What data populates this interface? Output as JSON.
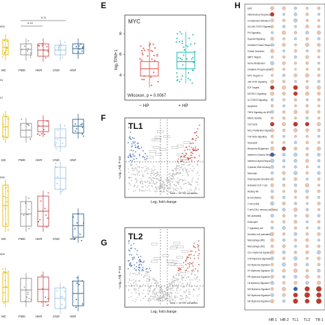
{
  "panel_labels": {
    "e": "E",
    "f": "F",
    "g": "G",
    "h": "H"
  },
  "colors": {
    "hp_minus": "#e0504a",
    "hp_plus": "#1fb8b0",
    "up": "#c0392b",
    "down": "#3a5fa8",
    "ns": "#b8b8b8",
    "pmmc": "#e6b800",
    "fmd": "#8c8c8c",
    "hkr": "#c8454a",
    "cnd": "#9fc0e0",
    "hnf": "#2a5f8a"
  },
  "left_panels": {
    "groups": [
      "MC",
      "FMD",
      "HKR",
      "CND",
      "HNF"
    ],
    "sig_top": [
      "0.19",
      "0.11"
    ],
    "sig_left": "005",
    "row_codes": [
      "01",
      "07",
      "006",
      "006"
    ]
  },
  "chart_data": [
    {
      "type": "box",
      "panel": "E",
      "title": "MYC",
      "ylabel": "log₂TPM+1",
      "categories": [
        "− HP",
        "+ HP"
      ],
      "ylim": [
        2.5,
        8.6
      ],
      "yticks": [
        4,
        6,
        8
      ],
      "stat_text": "Wilcoxon, p = 0.0067",
      "boxes": [
        {
          "name": "− HP",
          "q1": 3.9,
          "median": 4.6,
          "q3": 5.3,
          "whisker_low": 2.8,
          "whisker_high": 7.2
        },
        {
          "name": "+ HP",
          "q1": 4.6,
          "median": 5.3,
          "q3": 6.2,
          "whisker_low": 3.2,
          "whisker_high": 8.2
        }
      ]
    },
    {
      "type": "scatter",
      "panel": "F",
      "title": "TL1",
      "xlabel": "Log₂ fold change",
      "ylabel": "−Log₁₀ Adj. P-val",
      "total_text": "Total = 14799 variables"
    },
    {
      "type": "scatter",
      "panel": "G",
      "title": "TL2",
      "xlabel": "Log₂ fold change",
      "ylabel": "−Log₁₀ Adj. P-val",
      "total_text": "Total = 14799 variables"
    },
    {
      "type": "heatmap",
      "panel": "H",
      "columns": [
        "HB 1",
        "HB 2",
        "TL1",
        "TL2",
        "TB 1"
      ],
      "rows": [
        "EMT",
        "Inflammatory Response",
        "Complement Activation",
        "IL6-JAK-STAT3 Signaling",
        "PI3 Signaling",
        "Hypoxia Signaling",
        "Unfolded Protein Response",
        "Protein Secretion",
        "SBP1 Targets",
        "Heme Metabolism",
        "Oxidative Phosphorylation",
        "MYC Targets v2",
        "JAK STAT Signaling",
        "E2F Targets",
        "MTORC1 Signaling",
        "IL2 STAT5 Signaling",
        "Apoptosis",
        "TNFA Signaling via NFKB",
        "Mitotic Spindle",
        "Cell Cycle",
        "MCL Proliferation Signature",
        "TGF Beta Signaling",
        "Glycolysis",
        "Ribosome Biogenesis",
        "Interferon Gamma Response",
        "Interferon Alpha Response",
        "Cytosolic DNA Sensing",
        "Monocyte",
        "Plasmacytoid Dendritic cell",
        "Activated CD4 T cell",
        "Resting NK",
        "B-Cell (Naive)",
        "T-cell (CD8)",
        "T-cell (CD4, memory activated)",
        "NK (activated)",
        "Eosinophil",
        "T regulatory cell",
        "Dendritic cell (activated)",
        "Macrophage (M0)",
        "Macrophage (M2)",
        "CD-1 Myeloma Signature",
        "CTA Myeloma Signature",
        "CD Myeloma Signature",
        "HY Myeloma Signature",
        "PR Myeloma Signature",
        "LB Myeloma Signature",
        "MS Myeloma Signature",
        "MF Myeloma Signature",
        "MF Myeloma Signature"
      ],
      "values": [
        [
          0.5,
          0.4,
          -0.3,
          0.2,
          0.3
        ],
        [
          0.6,
          -0.2,
          -0.4,
          0.3,
          -0.2
        ],
        [
          0.4,
          0.3,
          -0.5,
          0.2,
          0.2
        ],
        [
          0.3,
          -0.3,
          -0.2,
          0.4,
          0.3
        ],
        [
          -0.2,
          0.5,
          0.3,
          -0.4,
          0.5
        ],
        [
          0.4,
          0.2,
          -0.2,
          0.3,
          -0.3
        ],
        [
          -0.3,
          0.4,
          0.2,
          0.5,
          0.4
        ],
        [
          0.5,
          -0.2,
          0.3,
          -0.2,
          0.3
        ],
        [
          0.2,
          0.3,
          -0.3,
          0.4,
          0.2
        ],
        [
          -0.5,
          0.4,
          0.2,
          0.3,
          -0.2
        ],
        [
          0.3,
          0.2,
          0.1,
          0.2,
          0.2
        ],
        [
          0.2,
          -0.3,
          0.4,
          0.5,
          0.3
        ],
        [
          0.4,
          0.3,
          -0.2,
          0.2,
          -0.3
        ],
        [
          0.6,
          0.5,
          0.7,
          0.4,
          0.5
        ],
        [
          0.5,
          0.4,
          0.6,
          0.5,
          0.4
        ],
        [
          -0.3,
          0.2,
          0.3,
          -0.2,
          0.3
        ],
        [
          0.3,
          -0.2,
          0.2,
          0.3,
          0.2
        ],
        [
          -0.4,
          0.3,
          0.5,
          0.4,
          0.3
        ],
        [
          0.2,
          0.3,
          0.2,
          -0.3,
          0.2
        ],
        [
          0.6,
          0.5,
          0.7,
          0.6,
          0.5
        ],
        [
          0.4,
          0.3,
          0.5,
          0.4,
          0.3
        ],
        [
          0.3,
          -0.2,
          0.2,
          0.2,
          -0.2
        ],
        [
          0.2,
          0.2,
          -0.3,
          0.3,
          0.2
        ],
        [
          0.5,
          0.6,
          0.4,
          0.3,
          0.5
        ],
        [
          -0.6,
          -0.4,
          -0.5,
          0.3,
          -0.4
        ],
        [
          -0.5,
          -0.3,
          -0.4,
          0.4,
          -0.3
        ],
        [
          -0.4,
          -0.2,
          -0.3,
          0.2,
          -0.2
        ],
        [
          -0.3,
          0.4,
          -0.5,
          0.3,
          -0.4
        ],
        [
          0.3,
          -0.3,
          0.4,
          -0.2,
          0.3
        ],
        [
          0.4,
          0.3,
          -0.3,
          0.5,
          0.2
        ],
        [
          -0.3,
          0.2,
          0.3,
          -0.4,
          0.3
        ],
        [
          0.4,
          -0.3,
          0.2,
          0.3,
          -0.2
        ],
        [
          -0.5,
          0.4,
          -0.3,
          0.2,
          0.4
        ],
        [
          0.3,
          -0.4,
          0.5,
          -0.3,
          0.2
        ],
        [
          -0.4,
          0.3,
          -0.2,
          0.4,
          -0.3
        ],
        [
          0.2,
          0.3,
          0.4,
          -0.2,
          0.3
        ],
        [
          -0.3,
          -0.4,
          0.3,
          0.2,
          -0.3
        ],
        [
          0.5,
          0.3,
          -0.4,
          0.3,
          0.4
        ],
        [
          0.4,
          -0.3,
          0.3,
          0.4,
          -0.2
        ],
        [
          0.3,
          0.4,
          -0.2,
          0.3,
          0.3
        ],
        [
          0.5,
          -0.4,
          0.3,
          0.4,
          -0.5
        ],
        [
          -0.4,
          0.3,
          -0.5,
          0.2,
          0.4
        ],
        [
          0.3,
          -0.5,
          0.4,
          -0.3,
          0.3
        ],
        [
          -0.3,
          0.4,
          0.5,
          0.3,
          -0.4
        ],
        [
          0.4,
          -0.3,
          -0.4,
          0.5,
          0.3
        ],
        [
          -0.5,
          0.3,
          0.4,
          -0.4,
          0.5
        ],
        [
          0.3,
          0.5,
          -0.6,
          0.8,
          0.9
        ],
        [
          -0.4,
          0.4,
          0.7,
          0.9,
          0.8
        ],
        [
          0.5,
          -0.3,
          0.8,
          0.7,
          0.9
        ]
      ]
    }
  ]
}
